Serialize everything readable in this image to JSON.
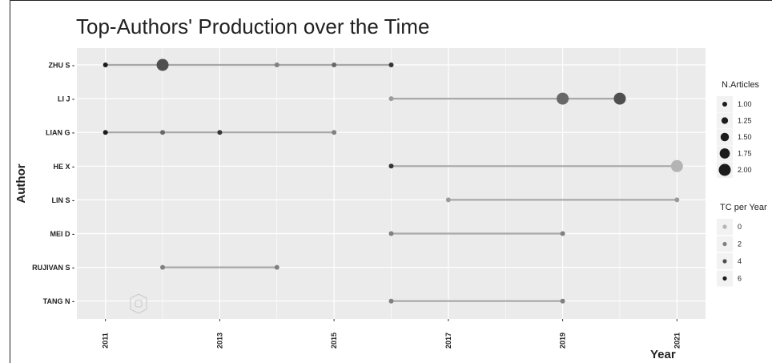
{
  "chart_data": {
    "type": "scatter",
    "title": "Top-Authors' Production over the Time",
    "xlabel": "Year",
    "ylabel": "Author",
    "xlim": [
      2010.5,
      2021.5
    ],
    "x_ticks": [
      "2011",
      "2013",
      "2015",
      "2017",
      "2019",
      "2021"
    ],
    "authors": [
      "ZHU S",
      "LI J",
      "LIAN G",
      "HE X",
      "LIN S",
      "MEI D",
      "RUJIVAN S",
      "TANG N"
    ],
    "tick_labels": [
      "ZHU S -",
      "LI J -",
      "LIAN G -",
      "HE X -",
      "LIN S -",
      "MEI D -",
      "RUJIVAN S -",
      "TANG N -"
    ],
    "series": [
      {
        "author": "ZHU S",
        "line": [
          2011,
          2016
        ],
        "points": [
          {
            "year": 2011,
            "articles": 1,
            "tc_per_year": 6
          },
          {
            "year": 2012,
            "articles": 2,
            "tc_per_year": 4
          },
          {
            "year": 2014,
            "articles": 1,
            "tc_per_year": 2
          },
          {
            "year": 2015,
            "articles": 1,
            "tc_per_year": 3
          },
          {
            "year": 2016,
            "articles": 1,
            "tc_per_year": 5
          }
        ]
      },
      {
        "author": "LI J",
        "line": [
          2016,
          2020
        ],
        "points": [
          {
            "year": 2016,
            "articles": 1,
            "tc_per_year": 1
          },
          {
            "year": 2019,
            "articles": 2,
            "tc_per_year": 3
          },
          {
            "year": 2020,
            "articles": 2,
            "tc_per_year": 4
          }
        ]
      },
      {
        "author": "LIAN G",
        "line": [
          2011,
          2015
        ],
        "points": [
          {
            "year": 2011,
            "articles": 1,
            "tc_per_year": 6
          },
          {
            "year": 2012,
            "articles": 1,
            "tc_per_year": 3
          },
          {
            "year": 2013,
            "articles": 1,
            "tc_per_year": 5
          },
          {
            "year": 2015,
            "articles": 1,
            "tc_per_year": 2
          }
        ]
      },
      {
        "author": "HE X",
        "line": [
          2016,
          2021
        ],
        "points": [
          {
            "year": 2016,
            "articles": 1,
            "tc_per_year": 5
          },
          {
            "year": 2021,
            "articles": 2,
            "tc_per_year": 0
          }
        ]
      },
      {
        "author": "LIN S",
        "line": [
          2017,
          2021
        ],
        "points": [
          {
            "year": 2017,
            "articles": 1,
            "tc_per_year": 1
          },
          {
            "year": 2021,
            "articles": 1,
            "tc_per_year": 1
          }
        ]
      },
      {
        "author": "MEI D",
        "line": [
          2016,
          2019
        ],
        "points": [
          {
            "year": 2016,
            "articles": 1,
            "tc_per_year": 2
          },
          {
            "year": 2019,
            "articles": 1,
            "tc_per_year": 2
          }
        ]
      },
      {
        "author": "RUJIVAN S",
        "line": [
          2012,
          2014
        ],
        "points": [
          {
            "year": 2012,
            "articles": 1,
            "tc_per_year": 2
          },
          {
            "year": 2014,
            "articles": 1,
            "tc_per_year": 2
          }
        ]
      },
      {
        "author": "TANG N",
        "line": [
          2016,
          2019
        ],
        "points": [
          {
            "year": 2016,
            "articles": 1,
            "tc_per_year": 2
          },
          {
            "year": 2019,
            "articles": 1,
            "tc_per_year": 2
          }
        ]
      }
    ],
    "legend_size": {
      "title": "N.Articles",
      "labels": [
        "1.00",
        "1.25",
        "1.50",
        "1.75",
        "2.00"
      ],
      "values": [
        1,
        1.25,
        1.5,
        1.75,
        2
      ]
    },
    "legend_color": {
      "title": "TC per Year",
      "labels": [
        "0",
        "2",
        "4",
        "6"
      ],
      "values": [
        0,
        2,
        4,
        6
      ]
    },
    "grid": true,
    "legend_position": "right",
    "colors": {
      "panel_background": "#ebebeb",
      "grid_line": "#ffffff",
      "segment_line": "#a8a8a8",
      "tc_low": "#b4b4b4",
      "tc_high": "#1c1c1c"
    }
  }
}
